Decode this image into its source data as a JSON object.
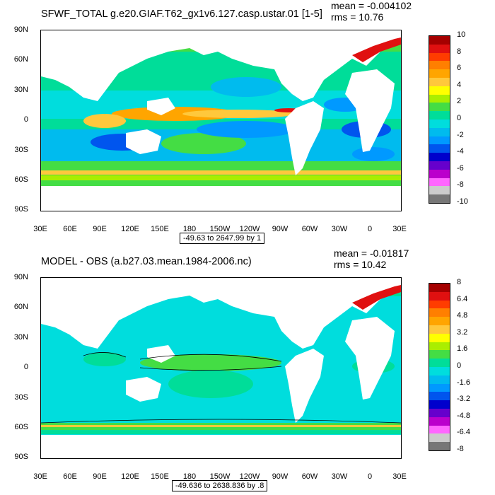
{
  "panels": [
    {
      "title": "SFWF_TOTAL g.e20.GIAF.T62_gx1v6.127.casp.ustar.01 [1-5]",
      "mean": "mean = -0.004102",
      "rms": "rms = 10.76",
      "contour_info": "-49.63 to 2647.99 by 1",
      "lat_labels": [
        "90N",
        "60N",
        "30N",
        "0",
        "30S",
        "60S",
        "90S"
      ],
      "lon_labels": [
        "30E",
        "60E",
        "90E",
        "120E",
        "150E",
        "180",
        "150W",
        "120W",
        "90W",
        "60W",
        "30W",
        "0",
        "30E"
      ],
      "colorbar_labels": [
        "10",
        "8",
        "6",
        "4",
        "2",
        "0",
        "-2",
        "-4",
        "-6",
        "-8",
        "-10"
      ],
      "colorbar_colors": [
        "#a50000",
        "#e01010",
        "#ff3c00",
        "#ff7f00",
        "#ffa500",
        "#ffc83c",
        "#ffff00",
        "#aaee00",
        "#44dd44",
        "#00dd99",
        "#00dddd",
        "#00bbee",
        "#0099ff",
        "#0055ee",
        "#0000cc",
        "#6600cc",
        "#bb00cc",
        "#ff66ff",
        "#cccccc",
        "#777777"
      ]
    },
    {
      "title": "MODEL - OBS (a.b27.03.mean.1984-2006.nc)",
      "mean": "mean = -0.01817",
      "rms": "rms = 10.42",
      "contour_info": "-49.636 to 2638.836 by .8",
      "lat_labels": [
        "90N",
        "60N",
        "30N",
        "0",
        "30S",
        "60S",
        "90S"
      ],
      "lon_labels": [
        "30E",
        "60E",
        "90E",
        "120E",
        "150E",
        "180",
        "150W",
        "120W",
        "90W",
        "60W",
        "30W",
        "0",
        "30E"
      ],
      "colorbar_labels": [
        "8",
        "6.4",
        "4.8",
        "3.2",
        "1.6",
        "0",
        "-1.6",
        "-3.2",
        "-4.8",
        "-6.4",
        "-8"
      ],
      "colorbar_colors": [
        "#a50000",
        "#e01010",
        "#ff3c00",
        "#ff7f00",
        "#ffa500",
        "#ffc83c",
        "#ffff00",
        "#aaee00",
        "#44dd44",
        "#00dd99",
        "#00dddd",
        "#00bbee",
        "#0099ff",
        "#0055ee",
        "#0000cc",
        "#6600cc",
        "#bb00cc",
        "#ff66ff",
        "#cccccc",
        "#777777"
      ]
    }
  ]
}
